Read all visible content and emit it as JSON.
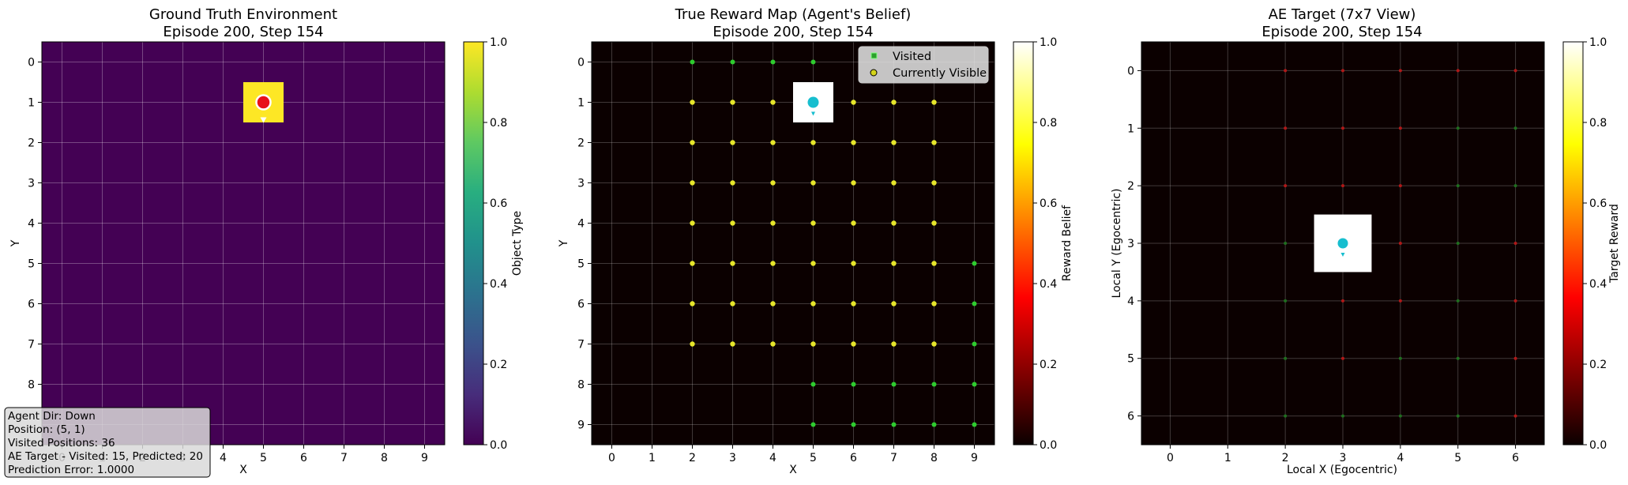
{
  "chart_data": [
    {
      "type": "heatmap",
      "title": "Ground Truth Environment",
      "subtitle": "Episode 200, Step 154",
      "xlabel": "X",
      "ylabel": "Y",
      "grid": true,
      "x_ticks": [
        "0",
        "1",
        "2",
        "3",
        "4",
        "5",
        "6",
        "7",
        "8",
        "9"
      ],
      "y_ticks": [
        "0",
        "1",
        "2",
        "3",
        "4",
        "5",
        "6",
        "7",
        "8"
      ],
      "xlim": [
        -0.5,
        9.5
      ],
      "ylim": [
        9.5,
        -0.5
      ],
      "background_value": 0.0,
      "cells": [
        {
          "x": 5,
          "y": 1,
          "value": 1.0
        }
      ],
      "agent": {
        "x": 5,
        "y": 1,
        "color": "#e8101a",
        "direction": "down"
      },
      "colorbar": {
        "label": "Object Type",
        "colormap": "viridis",
        "min": 0.0,
        "max": 1.0,
        "ticks": [
          "0.0",
          "0.2",
          "0.4",
          "0.6",
          "0.8",
          "1.0"
        ]
      },
      "info_box": [
        "Agent Dir: Down",
        "Position: (5, 1)",
        "Visited Positions: 36",
        "AE Target - Visited: 15, Predicted: 20",
        "Prediction Error: 1.0000"
      ]
    },
    {
      "type": "heatmap",
      "title": "True Reward Map (Agent's Belief)",
      "subtitle": "Episode 200, Step 154",
      "xlabel": "X",
      "ylabel": "Y",
      "grid": true,
      "x_ticks": [
        "0",
        "1",
        "2",
        "3",
        "4",
        "5",
        "6",
        "7",
        "8",
        "9"
      ],
      "y_ticks": [
        "0",
        "1",
        "2",
        "3",
        "4",
        "5",
        "6",
        "7",
        "8",
        "9"
      ],
      "xlim": [
        -0.5,
        9.5
      ],
      "ylim": [
        9.5,
        -0.5
      ],
      "background_value": 0.0,
      "cells": [
        {
          "x": 5,
          "y": 1,
          "value": 1.0
        }
      ],
      "agent": {
        "x": 5,
        "y": 1,
        "color": "#17becf",
        "direction": "down"
      },
      "legend": {
        "placement": "top-right",
        "entries": [
          "Visited",
          "Currently Visible"
        ]
      },
      "visited_points": [
        [
          2,
          0
        ],
        [
          3,
          0
        ],
        [
          4,
          0
        ],
        [
          5,
          0
        ],
        [
          9,
          5
        ],
        [
          9,
          6
        ],
        [
          9,
          7
        ],
        [
          5,
          8
        ],
        [
          6,
          8
        ],
        [
          7,
          8
        ],
        [
          8,
          8
        ],
        [
          9,
          8
        ],
        [
          5,
          9
        ],
        [
          6,
          9
        ],
        [
          7,
          9
        ],
        [
          8,
          9
        ],
        [
          9,
          9
        ]
      ],
      "visible_points": [
        [
          2,
          1
        ],
        [
          3,
          1
        ],
        [
          4,
          1
        ],
        [
          6,
          1
        ],
        [
          7,
          1
        ],
        [
          8,
          1
        ],
        [
          2,
          2
        ],
        [
          3,
          2
        ],
        [
          4,
          2
        ],
        [
          5,
          2
        ],
        [
          6,
          2
        ],
        [
          7,
          2
        ],
        [
          8,
          2
        ],
        [
          2,
          3
        ],
        [
          3,
          3
        ],
        [
          4,
          3
        ],
        [
          5,
          3
        ],
        [
          6,
          3
        ],
        [
          7,
          3
        ],
        [
          8,
          3
        ],
        [
          2,
          4
        ],
        [
          3,
          4
        ],
        [
          4,
          4
        ],
        [
          5,
          4
        ],
        [
          6,
          4
        ],
        [
          7,
          4
        ],
        [
          8,
          4
        ],
        [
          2,
          5
        ],
        [
          3,
          5
        ],
        [
          4,
          5
        ],
        [
          5,
          5
        ],
        [
          6,
          5
        ],
        [
          7,
          5
        ],
        [
          8,
          5
        ],
        [
          2,
          6
        ],
        [
          3,
          6
        ],
        [
          4,
          6
        ],
        [
          5,
          6
        ],
        [
          6,
          6
        ],
        [
          7,
          6
        ],
        [
          8,
          6
        ],
        [
          2,
          7
        ],
        [
          3,
          7
        ],
        [
          4,
          7
        ],
        [
          5,
          7
        ],
        [
          6,
          7
        ],
        [
          7,
          7
        ],
        [
          8,
          7
        ]
      ],
      "colorbar": {
        "label": "Reward Belief",
        "colormap": "hot",
        "min": 0.0,
        "max": 1.0,
        "ticks": [
          "0.0",
          "0.2",
          "0.4",
          "0.6",
          "0.8",
          "1.0"
        ]
      }
    },
    {
      "type": "heatmap",
      "title": "AE Target (7x7 View)",
      "subtitle": "Episode 200, Step 154",
      "xlabel": "Local X (Egocentric)",
      "ylabel": "Local Y (Egocentric)",
      "grid": true,
      "x_ticks": [
        "0",
        "1",
        "2",
        "3",
        "4",
        "5",
        "6"
      ],
      "y_ticks": [
        "0",
        "1",
        "2",
        "3",
        "4",
        "5",
        "6"
      ],
      "xlim": [
        -0.5,
        6.5
      ],
      "ylim": [
        6.5,
        -0.5
      ],
      "background_value": 0.0,
      "cells": [
        {
          "x": 3,
          "y": 3,
          "value": 1.0
        }
      ],
      "agent": {
        "x": 3,
        "y": 3,
        "color": "#17becf",
        "direction": "down"
      },
      "red_points": [
        [
          2,
          0
        ],
        [
          3,
          0
        ],
        [
          4,
          0
        ],
        [
          5,
          0
        ],
        [
          6,
          0
        ],
        [
          2,
          1
        ],
        [
          3,
          1
        ],
        [
          4,
          1
        ],
        [
          2,
          2
        ],
        [
          3,
          2
        ],
        [
          4,
          2
        ],
        [
          4,
          3
        ],
        [
          6,
          3
        ],
        [
          3,
          4
        ],
        [
          4,
          4
        ],
        [
          6,
          4
        ],
        [
          3,
          5
        ],
        [
          6,
          5
        ],
        [
          6,
          6
        ]
      ],
      "green_points": [
        [
          5,
          1
        ],
        [
          6,
          1
        ],
        [
          5,
          2
        ],
        [
          6,
          2
        ],
        [
          2,
          3
        ],
        [
          5,
          3
        ],
        [
          2,
          4
        ],
        [
          5,
          4
        ],
        [
          2,
          5
        ],
        [
          4,
          5
        ],
        [
          5,
          5
        ],
        [
          2,
          6
        ],
        [
          3,
          6
        ],
        [
          4,
          6
        ],
        [
          5,
          6
        ]
      ],
      "colorbar": {
        "label": "Target Reward",
        "colormap": "hot",
        "min": 0.0,
        "max": 1.0,
        "ticks": [
          "0.0",
          "0.2",
          "0.4",
          "0.6",
          "0.8",
          "1.0"
        ]
      }
    }
  ]
}
